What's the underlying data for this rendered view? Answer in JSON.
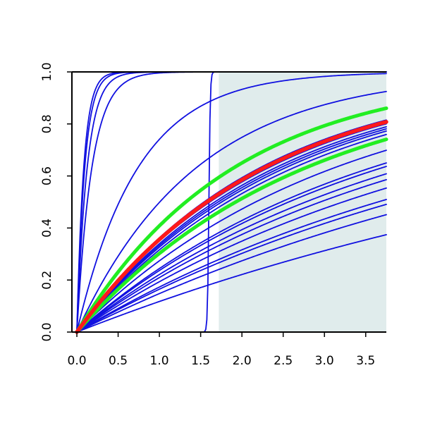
{
  "chart_data": {
    "type": "line",
    "title": "",
    "xlabel": "",
    "ylabel": "",
    "xlim": [
      -0.06,
      3.75
    ],
    "ylim": [
      0,
      1
    ],
    "grid": false,
    "legend": "none",
    "shaded_region": {
      "x_start": 1.72,
      "x_end": 3.75,
      "color": "#e0ecec"
    },
    "x_ticks": [
      "0.0",
      "0.5",
      "1.0",
      "1.5",
      "2.0",
      "2.5",
      "3.0",
      "3.5"
    ],
    "y_ticks": [
      "0.0",
      "0.2",
      "0.4",
      "0.6",
      "0.8",
      "1.0"
    ],
    "colors": {
      "blue": "#1010e0",
      "red": "#ff1a1a",
      "green": "#22ee22",
      "shade": "#e0ecec"
    },
    "series": [
      {
        "kind": "exp",
        "rate": 12.0,
        "color": "blue",
        "width": 1.8
      },
      {
        "kind": "exp",
        "rate": 10.5,
        "color": "blue",
        "width": 1.8
      },
      {
        "kind": "exp",
        "rate": 8.0,
        "color": "blue",
        "width": 1.8
      },
      {
        "kind": "exp",
        "rate": 5.5,
        "color": "blue",
        "width": 1.8
      },
      {
        "kind": "exp",
        "rate": 1.35,
        "color": "blue",
        "width": 1.8
      },
      {
        "kind": "exp",
        "rate": 0.69,
        "color": "blue",
        "width": 1.8
      },
      {
        "kind": "exp",
        "rate": 0.45,
        "color": "blue",
        "width": 1.8
      },
      {
        "kind": "exp",
        "rate": 0.43,
        "color": "blue",
        "width": 1.8
      },
      {
        "kind": "exp",
        "rate": 0.415,
        "color": "blue",
        "width": 1.8
      },
      {
        "kind": "exp",
        "rate": 0.405,
        "color": "blue",
        "width": 1.8
      },
      {
        "kind": "exp",
        "rate": 0.395,
        "color": "blue",
        "width": 1.8
      },
      {
        "kind": "exp",
        "rate": 0.38,
        "color": "blue",
        "width": 1.8
      },
      {
        "kind": "exp",
        "rate": 0.32,
        "color": "blue",
        "width": 1.8
      },
      {
        "kind": "exp",
        "rate": 0.28,
        "color": "blue",
        "width": 1.8
      },
      {
        "kind": "exp",
        "rate": 0.27,
        "color": "blue",
        "width": 1.8
      },
      {
        "kind": "exp",
        "rate": 0.25,
        "color": "blue",
        "width": 1.8
      },
      {
        "kind": "exp",
        "rate": 0.235,
        "color": "blue",
        "width": 1.8
      },
      {
        "kind": "exp",
        "rate": 0.215,
        "color": "blue",
        "width": 1.8
      },
      {
        "kind": "exp",
        "rate": 0.19,
        "color": "blue",
        "width": 1.8
      },
      {
        "kind": "exp",
        "rate": 0.18,
        "color": "blue",
        "width": 1.8
      },
      {
        "kind": "exp",
        "rate": 0.16,
        "color": "blue",
        "width": 1.8
      },
      {
        "kind": "exp",
        "rate": 0.125,
        "color": "blue",
        "width": 1.8
      },
      {
        "kind": "step",
        "center": 1.6,
        "steep": 120,
        "color": "blue",
        "width": 1.8
      },
      {
        "kind": "exp",
        "rate": 0.525,
        "color": "green",
        "width": 5
      },
      {
        "kind": "exp",
        "rate": 0.36,
        "color": "green",
        "width": 5
      },
      {
        "kind": "exp",
        "rate": 0.44,
        "color": "red",
        "width": 5.5
      }
    ]
  }
}
